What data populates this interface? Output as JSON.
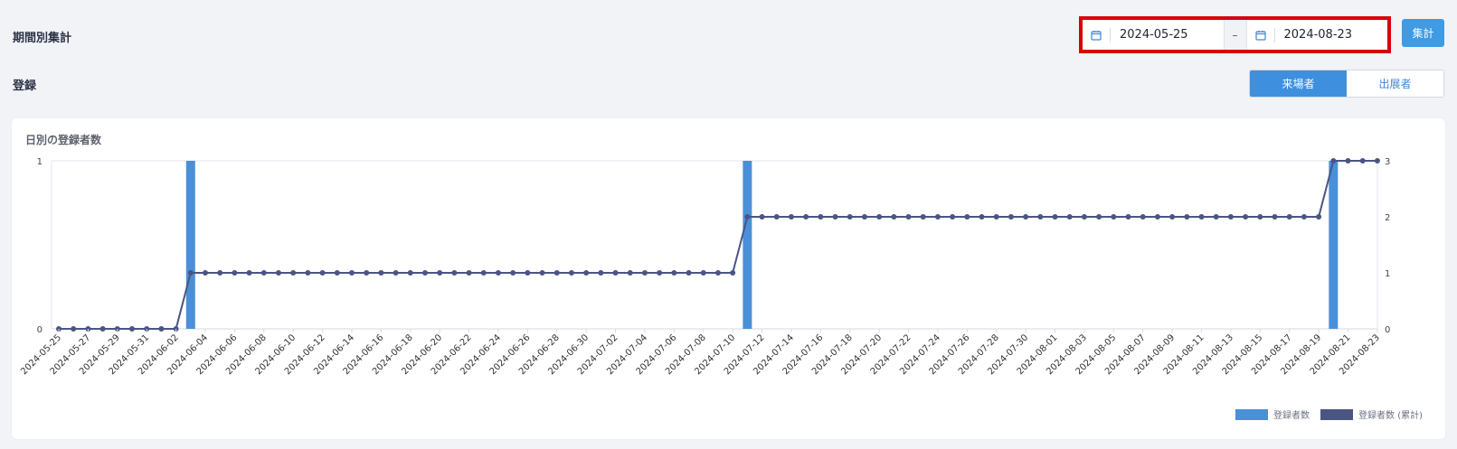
{
  "page": {
    "title": "期間別集計",
    "section_title": "登録"
  },
  "date_range": {
    "start": "2024-05-25",
    "separator": "–",
    "end": "2024-08-23"
  },
  "toolbar": {
    "calc_label": "集計"
  },
  "toggle": {
    "options": [
      "来場者",
      "出展者"
    ],
    "selected": "来場者"
  },
  "chart_card": {
    "title": "日別の登録者数"
  },
  "colors": {
    "bar": "#4a90d9",
    "line": "#4a5584",
    "accent": "#3f9be3",
    "highlight": "#d8000d"
  },
  "icons": {
    "calendar": "calendar-icon"
  },
  "chart_data": {
    "type": "bar",
    "title": "日別の登録者数",
    "x_start": "2024-05-25",
    "x_end": "2024-08-23",
    "x_tick_labels": [
      "2024-05-25",
      "2024-05-27",
      "2024-05-29",
      "2024-05-31",
      "2024-06-02",
      "2024-06-04",
      "2024-06-06",
      "2024-06-08",
      "2024-06-10",
      "2024-06-12",
      "2024-06-14",
      "2024-06-16",
      "2024-06-18",
      "2024-06-20",
      "2024-06-22",
      "2024-06-24",
      "2024-06-26",
      "2024-06-28",
      "2024-06-30",
      "2024-07-02",
      "2024-07-04",
      "2024-07-06",
      "2024-07-08",
      "2024-07-10",
      "2024-07-12",
      "2024-07-14",
      "2024-07-16",
      "2024-07-18",
      "2024-07-20",
      "2024-07-22",
      "2024-07-24",
      "2024-07-26",
      "2024-07-28",
      "2024-07-30",
      "2024-08-01",
      "2024-08-03",
      "2024-08-05",
      "2024-08-07",
      "2024-08-09",
      "2024-08-11",
      "2024-08-13",
      "2024-08-15",
      "2024-08-17",
      "2024-08-19",
      "2024-08-21",
      "2024-08-23"
    ],
    "series": [
      {
        "name": "登録者数",
        "type": "bar",
        "axis": "left",
        "points": [
          {
            "x": "2024-06-03",
            "y": 1
          },
          {
            "x": "2024-07-11",
            "y": 1
          },
          {
            "x": "2024-08-20",
            "y": 1
          }
        ]
      },
      {
        "name": "登録者数 (累計)",
        "type": "line",
        "axis": "right",
        "steps": [
          {
            "from": "2024-05-25",
            "y": 0
          },
          {
            "from": "2024-06-03",
            "y": 1
          },
          {
            "from": "2024-07-11",
            "y": 2
          },
          {
            "from": "2024-08-20",
            "y": 3
          }
        ]
      }
    ],
    "y_left": {
      "range": [
        0,
        1
      ],
      "ticks": [
        0,
        1
      ]
    },
    "y_right": {
      "range": [
        0,
        3
      ],
      "ticks": [
        0,
        1,
        2,
        3
      ]
    },
    "legend": [
      "登録者数",
      "登録者数 (累計)"
    ],
    "legend_position": "bottom-right"
  }
}
